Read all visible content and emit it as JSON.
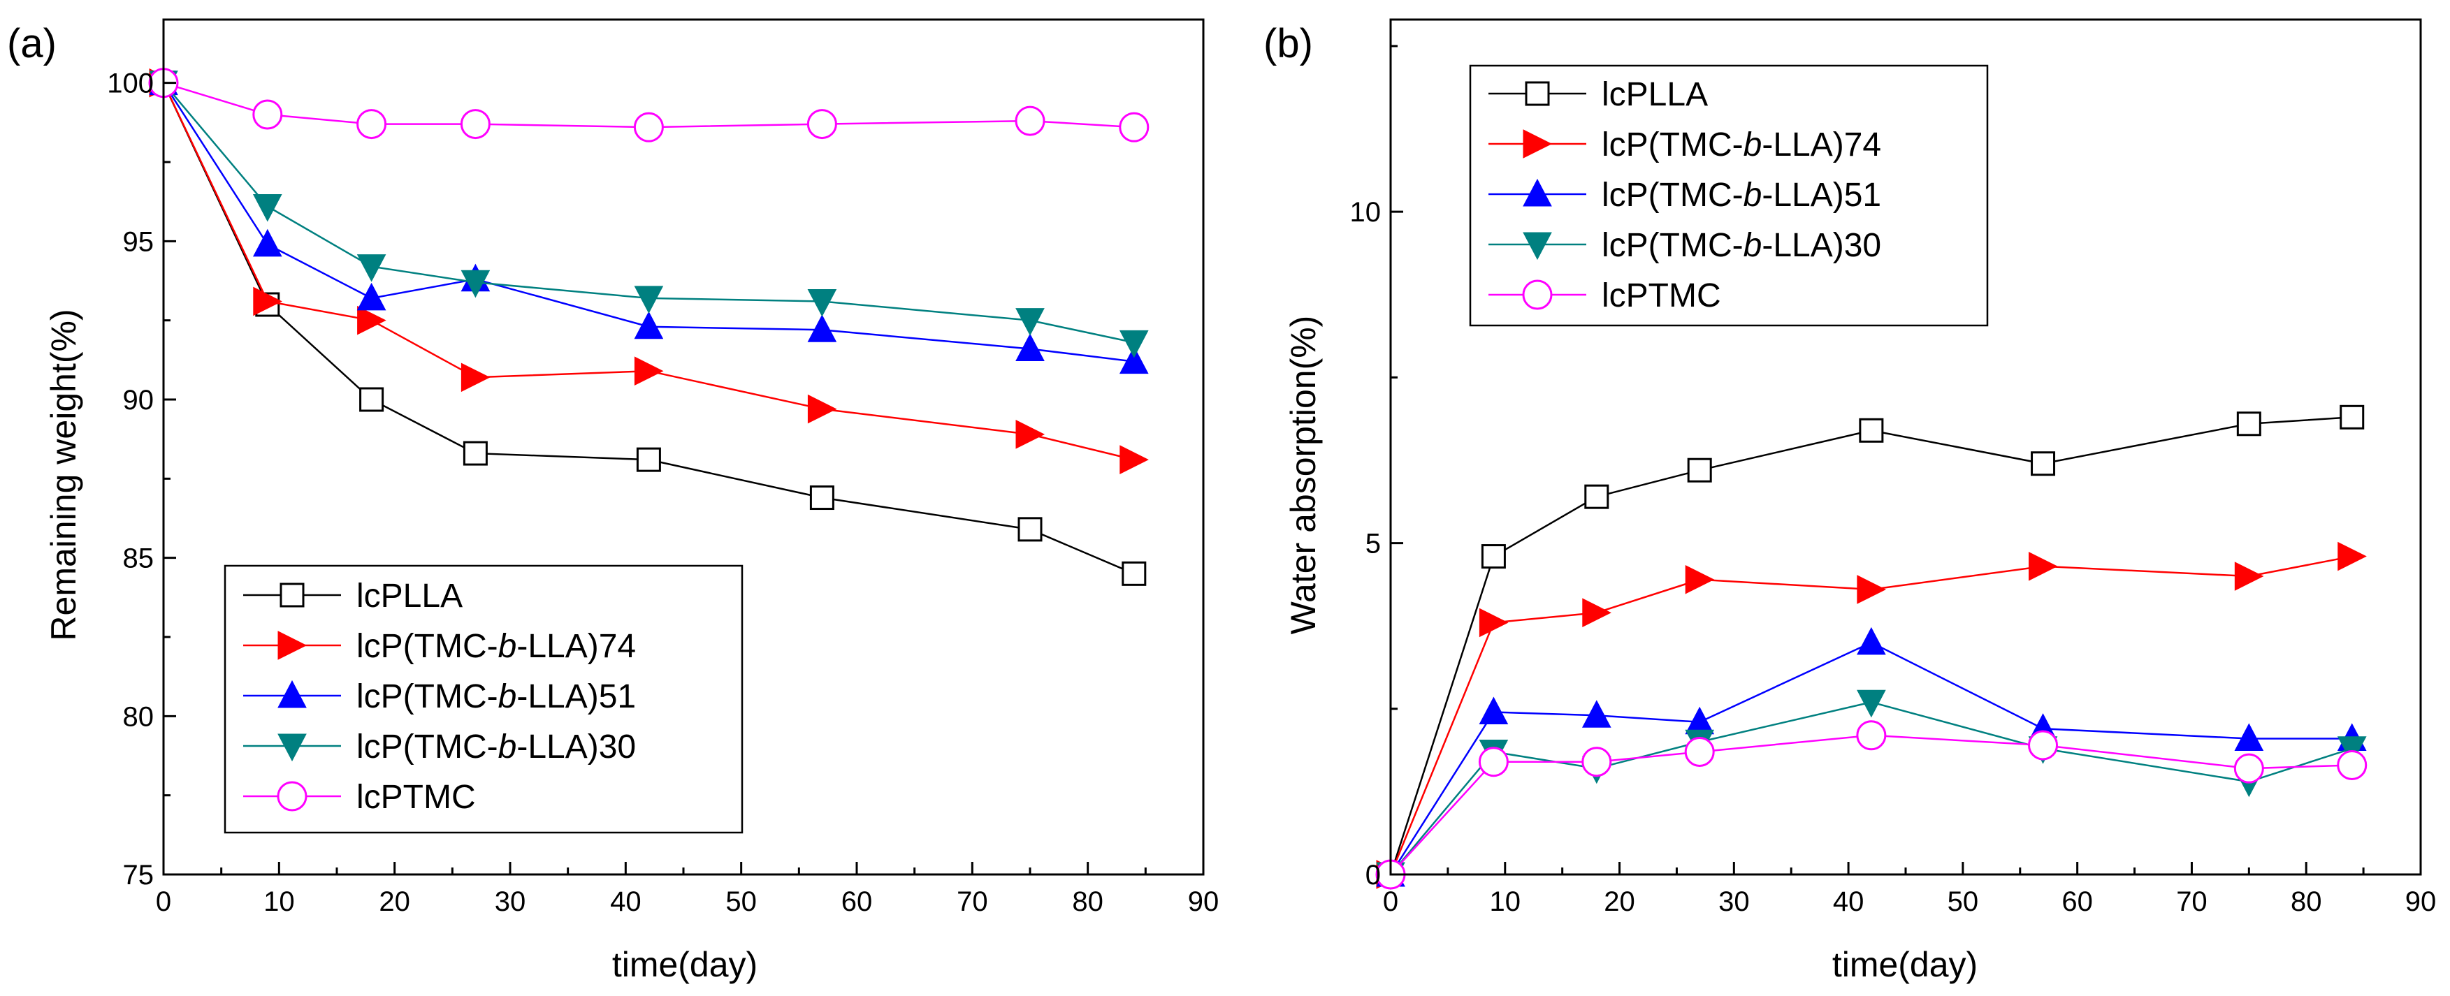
{
  "chart_data": [
    {
      "type": "line",
      "panel_label": "(a)",
      "xlabel": "time(day)",
      "ylabel": "Remaining weight(%)",
      "xlim": [
        0,
        90
      ],
      "ylim": [
        75,
        102
      ],
      "xticks": [
        0,
        10,
        20,
        30,
        40,
        50,
        60,
        70,
        80,
        90
      ],
      "yticks": [
        75,
        80,
        85,
        90,
        95,
        100
      ],
      "legend_position": "bottom-left",
      "x": [
        0,
        9,
        18,
        27,
        42,
        57,
        75,
        84
      ],
      "series": [
        {
          "name": "lcPLLA",
          "name_parts": [
            {
              "text": "lcPLLA",
              "italic": false
            }
          ],
          "color": "#000000",
          "marker": "square",
          "values": [
            100,
            93.0,
            90.0,
            88.3,
            88.1,
            86.9,
            85.9,
            84.5
          ]
        },
        {
          "name": "lcP(TMC-b-LLA)74",
          "name_parts": [
            {
              "text": "lcP(TMC-",
              "italic": false
            },
            {
              "text": "b",
              "italic": true
            },
            {
              "text": "-LLA)74",
              "italic": false
            }
          ],
          "color": "#ff0000",
          "marker": "triangle-right",
          "values": [
            100,
            93.1,
            92.5,
            90.7,
            90.9,
            89.7,
            88.9,
            88.1
          ]
        },
        {
          "name": "lcP(TMC-b-LLA)51",
          "name_parts": [
            {
              "text": "lcP(TMC-",
              "italic": false
            },
            {
              "text": "b",
              "italic": true
            },
            {
              "text": "-LLA)51",
              "italic": false
            }
          ],
          "color": "#0000ff",
          "marker": "triangle-up",
          "values": [
            100,
            94.9,
            93.2,
            93.8,
            92.3,
            92.2,
            91.6,
            91.2
          ]
        },
        {
          "name": "lcP(TMC-b-LLA)30",
          "name_parts": [
            {
              "text": "lcP(TMC-",
              "italic": false
            },
            {
              "text": "b",
              "italic": true
            },
            {
              "text": "-LLA)30",
              "italic": false
            }
          ],
          "color": "#008080",
          "marker": "triangle-down",
          "values": [
            100,
            96.1,
            94.2,
            93.7,
            93.2,
            93.1,
            92.5,
            91.8
          ]
        },
        {
          "name": "lcPTMC",
          "name_parts": [
            {
              "text": "lcPTMC",
              "italic": false
            }
          ],
          "color": "#ff00ff",
          "marker": "circle",
          "values": [
            100,
            99.0,
            98.7,
            98.7,
            98.6,
            98.7,
            98.8,
            98.6
          ]
        }
      ]
    },
    {
      "type": "line",
      "panel_label": "(b)",
      "xlabel": "time(day)",
      "ylabel": "Water absorption(%)",
      "xlim": [
        0,
        90
      ],
      "ylim": [
        0,
        12.9
      ],
      "xticks": [
        0,
        10,
        20,
        30,
        40,
        50,
        60,
        70,
        80,
        90
      ],
      "yticks": [
        0,
        5,
        10
      ],
      "legend_position": "top-left",
      "x": [
        0,
        9,
        18,
        27,
        42,
        57,
        75,
        84
      ],
      "series": [
        {
          "name": "lcPLLA",
          "name_parts": [
            {
              "text": "lcPLLA",
              "italic": false
            }
          ],
          "color": "#000000",
          "marker": "square",
          "values": [
            0,
            4.8,
            5.7,
            6.1,
            6.7,
            6.2,
            6.8,
            6.9
          ]
        },
        {
          "name": "lcP(TMC-b-LLA)74",
          "name_parts": [
            {
              "text": "lcP(TMC-",
              "italic": false
            },
            {
              "text": "b",
              "italic": true
            },
            {
              "text": "-LLA)74",
              "italic": false
            }
          ],
          "color": "#ff0000",
          "marker": "triangle-right",
          "values": [
            0,
            3.8,
            3.95,
            4.45,
            4.3,
            4.65,
            4.5,
            4.8
          ]
        },
        {
          "name": "lcP(TMC-b-LLA)51",
          "name_parts": [
            {
              "text": "lcP(TMC-",
              "italic": false
            },
            {
              "text": "b",
              "italic": true
            },
            {
              "text": "-LLA)51",
              "italic": false
            }
          ],
          "color": "#0000ff",
          "marker": "triangle-up",
          "values": [
            0,
            2.45,
            2.4,
            2.3,
            3.5,
            2.2,
            2.05,
            2.05
          ]
        },
        {
          "name": "lcP(TMC-b-LLA)30",
          "name_parts": [
            {
              "text": "lcP(TMC-",
              "italic": false
            },
            {
              "text": "b",
              "italic": true
            },
            {
              "text": "-LLA)30",
              "italic": false
            }
          ],
          "color": "#008080",
          "marker": "triangle-down",
          "values": [
            0,
            1.85,
            1.6,
            2.0,
            2.6,
            1.9,
            1.4,
            1.9
          ]
        },
        {
          "name": "lcPTMC",
          "name_parts": [
            {
              "text": "lcPTMC",
              "italic": false
            }
          ],
          "color": "#ff00ff",
          "marker": "circle",
          "values": [
            0,
            1.7,
            1.7,
            1.85,
            2.1,
            1.95,
            1.6,
            1.65
          ]
        }
      ]
    }
  ]
}
